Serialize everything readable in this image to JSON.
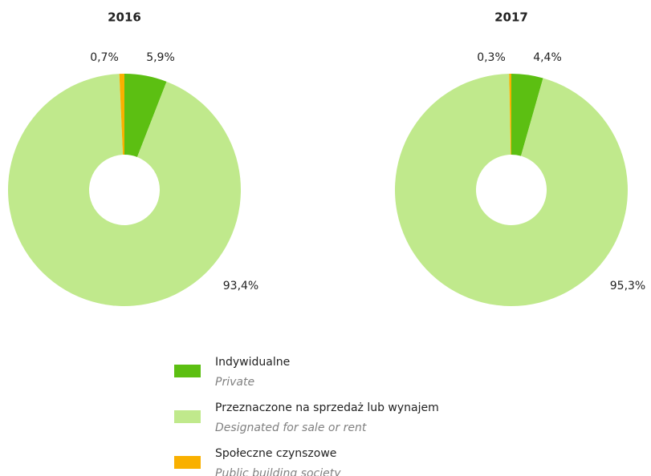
{
  "chart_data": [
    {
      "type": "donut",
      "title": "2016",
      "categories": [
        "Indywidualne",
        "Przeznaczone na sprzedaż lub wynajem",
        "Społeczne czynszowe"
      ],
      "categories_en": [
        "Private",
        "Designated for sale or rent",
        "Public building society"
      ],
      "colors": [
        "#5cbf12",
        "#c0e98c",
        "#f9b000"
      ],
      "values": [
        5.9,
        93.4,
        0.7
      ],
      "value_labels": [
        "5,9%",
        "93,4%",
        "0,7%"
      ]
    },
    {
      "type": "donut",
      "title": "2017",
      "categories": [
        "Indywidualne",
        "Przeznaczone na sprzedaż lub wynajem",
        "Społeczne czynszowe"
      ],
      "categories_en": [
        "Private",
        "Designated for sale or rent",
        "Public building society"
      ],
      "colors": [
        "#5cbf12",
        "#c0e98c",
        "#f9b000"
      ],
      "values": [
        4.4,
        95.3,
        0.3
      ],
      "value_labels": [
        "4,4%",
        "95,3%",
        "0,3%"
      ]
    }
  ]
}
